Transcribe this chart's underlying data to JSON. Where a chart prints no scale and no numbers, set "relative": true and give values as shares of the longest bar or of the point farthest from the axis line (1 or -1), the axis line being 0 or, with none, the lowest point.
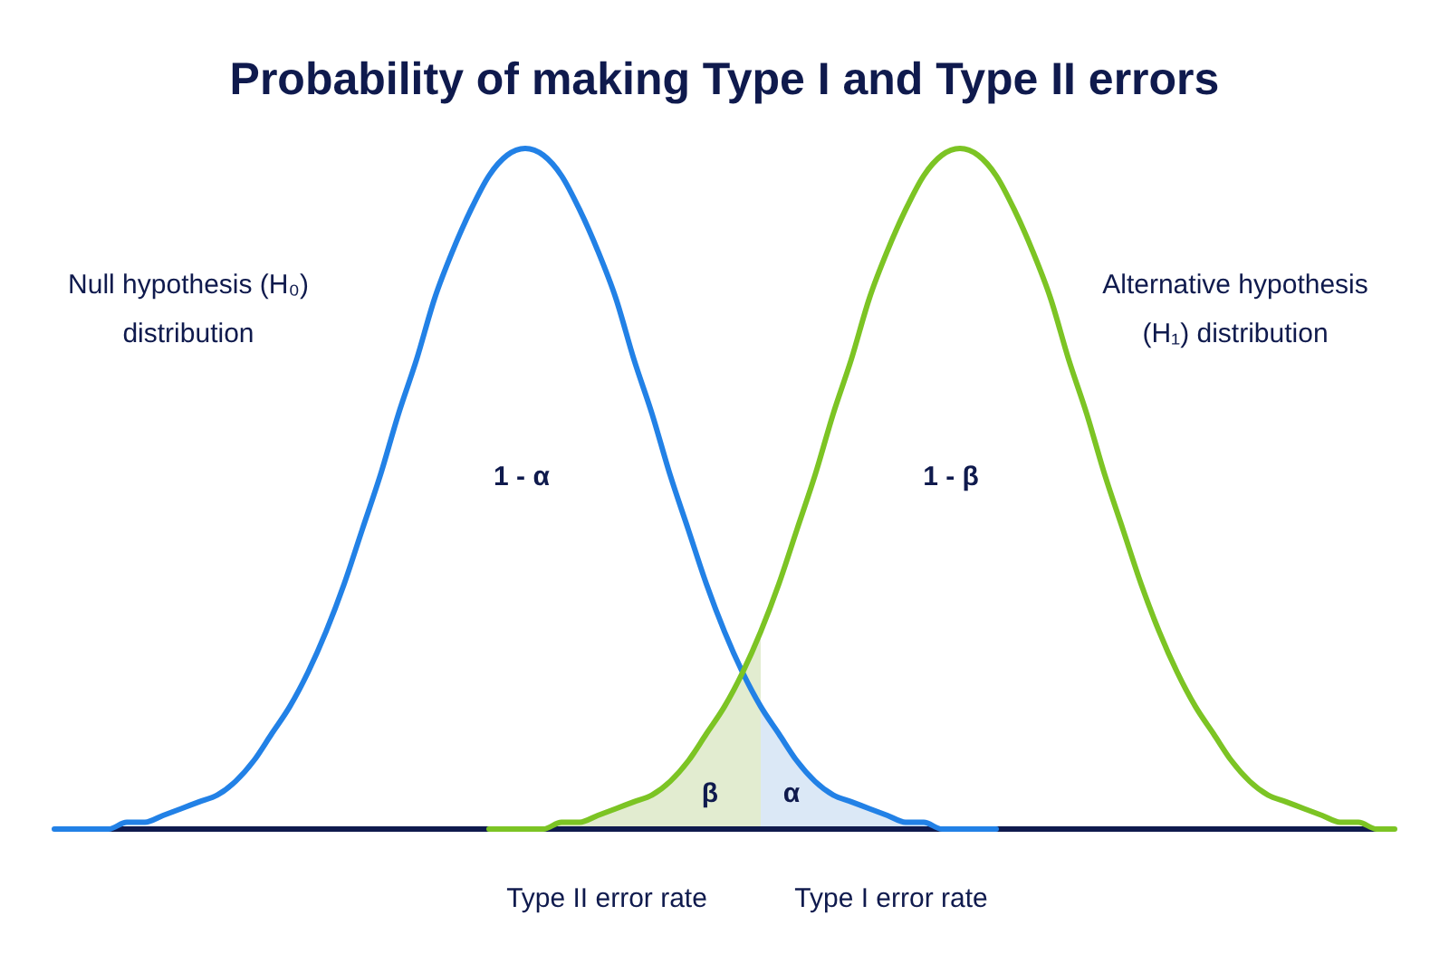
{
  "chart_data": {
    "type": "line",
    "relative": true,
    "title": "Probability of making Type I and Type II errors",
    "categories": [
      null,
      null,
      null,
      null,
      null,
      null,
      null,
      null,
      null,
      null,
      null,
      null,
      null,
      null,
      null,
      null,
      null,
      null,
      null,
      null,
      null,
      null,
      null,
      null,
      null,
      null,
      null,
      null,
      null,
      null,
      null,
      null,
      null,
      null,
      null,
      null,
      null,
      null,
      null,
      null,
      null,
      null,
      null,
      null,
      null,
      null,
      null,
      null,
      null,
      null,
      null,
      null,
      null,
      null,
      null,
      null,
      null,
      null,
      null,
      null,
      null,
      null,
      null,
      null,
      null,
      null,
      null,
      null,
      null,
      null,
      null,
      null,
      null,
      null,
      null
    ],
    "series": [
      {
        "type": "area",
        "color": "#e2ecd0",
        "values": [
          null,
          null,
          null,
          null,
          null,
          null,
          null,
          null,
          null,
          null,
          null,
          null,
          null,
          null,
          null,
          null,
          null,
          null,
          null,
          null,
          null,
          null,
          null,
          null,
          0,
          0,
          0,
          0,
          0.01,
          0.01,
          0.02,
          0.03,
          0.04,
          0.05,
          0.07,
          0.1,
          0.14,
          0.18,
          0.23,
          0.29,
          null,
          null,
          null,
          null,
          null,
          null,
          null,
          null,
          null,
          null,
          null,
          null,
          null,
          null,
          null,
          null,
          null,
          null,
          null,
          null,
          null,
          null,
          null,
          null,
          null,
          null,
          null,
          null,
          null,
          null,
          null,
          null,
          null,
          null,
          null
        ]
      },
      {
        "type": "area",
        "color": "#dbe8f6",
        "values": [
          null,
          null,
          null,
          null,
          null,
          null,
          null,
          null,
          null,
          null,
          null,
          null,
          null,
          null,
          null,
          null,
          null,
          null,
          null,
          null,
          null,
          null,
          null,
          null,
          null,
          null,
          null,
          null,
          null,
          null,
          null,
          null,
          null,
          null,
          null,
          null,
          null,
          null,
          null,
          0.18,
          0.14,
          0.1,
          0.07,
          0.05,
          0.04,
          0.03,
          0.02,
          0.01,
          0.01,
          0,
          0,
          0,
          0,
          null,
          null,
          null,
          null,
          null,
          null,
          null,
          null,
          null,
          null,
          null,
          null,
          null,
          null,
          null,
          null,
          null,
          null,
          null,
          null,
          null,
          null
        ]
      },
      {
        "color": "#2281e6",
        "values": [
          0,
          0,
          0,
          0,
          0.01,
          0.01,
          0.02,
          0.03,
          0.04,
          0.05,
          0.07,
          0.1,
          0.14,
          0.18,
          0.23,
          0.29,
          0.36,
          0.44,
          0.52,
          0.61,
          0.69,
          0.78,
          0.85,
          0.91,
          0.96,
          0.99,
          1,
          0.99,
          0.96,
          0.91,
          0.85,
          0.78,
          0.69,
          0.61,
          0.52,
          0.44,
          0.36,
          0.29,
          0.23,
          0.18,
          0.14,
          0.1,
          0.07,
          0.05,
          0.04,
          0.03,
          0.02,
          0.01,
          0.01,
          0,
          0,
          0,
          0,
          null,
          null,
          null,
          null,
          null,
          null,
          null,
          null,
          null,
          null,
          null,
          null,
          null,
          null,
          null,
          null,
          null,
          null,
          null,
          null,
          null,
          null
        ]
      },
      {
        "color": "#7cc424",
        "values": [
          null,
          null,
          null,
          null,
          null,
          null,
          null,
          null,
          null,
          null,
          null,
          null,
          null,
          null,
          null,
          null,
          null,
          null,
          null,
          null,
          null,
          null,
          null,
          null,
          0,
          0,
          0,
          0,
          0.01,
          0.01,
          0.02,
          0.03,
          0.04,
          0.05,
          0.07,
          0.1,
          0.14,
          0.18,
          0.23,
          0.29,
          0.36,
          0.44,
          0.52,
          0.61,
          0.69,
          0.78,
          0.85,
          0.91,
          0.96,
          0.99,
          1,
          0.99,
          0.96,
          0.91,
          0.85,
          0.78,
          0.69,
          0.61,
          0.52,
          0.44,
          0.36,
          0.29,
          0.23,
          0.18,
          0.14,
          0.1,
          0.07,
          0.05,
          0.04,
          0.03,
          0.02,
          0.01,
          0.01,
          0,
          0
        ]
      }
    ],
    "annotations": [
      "Null hypothesis (H₀)\ndistribution",
      "Alternative hypothesis\n(H₁) distribution",
      "1 - α",
      "1 - β",
      "β",
      "α",
      "Type II error rate",
      "Type I error rate"
    ],
    "line_style": "solid",
    "marker": "none"
  }
}
